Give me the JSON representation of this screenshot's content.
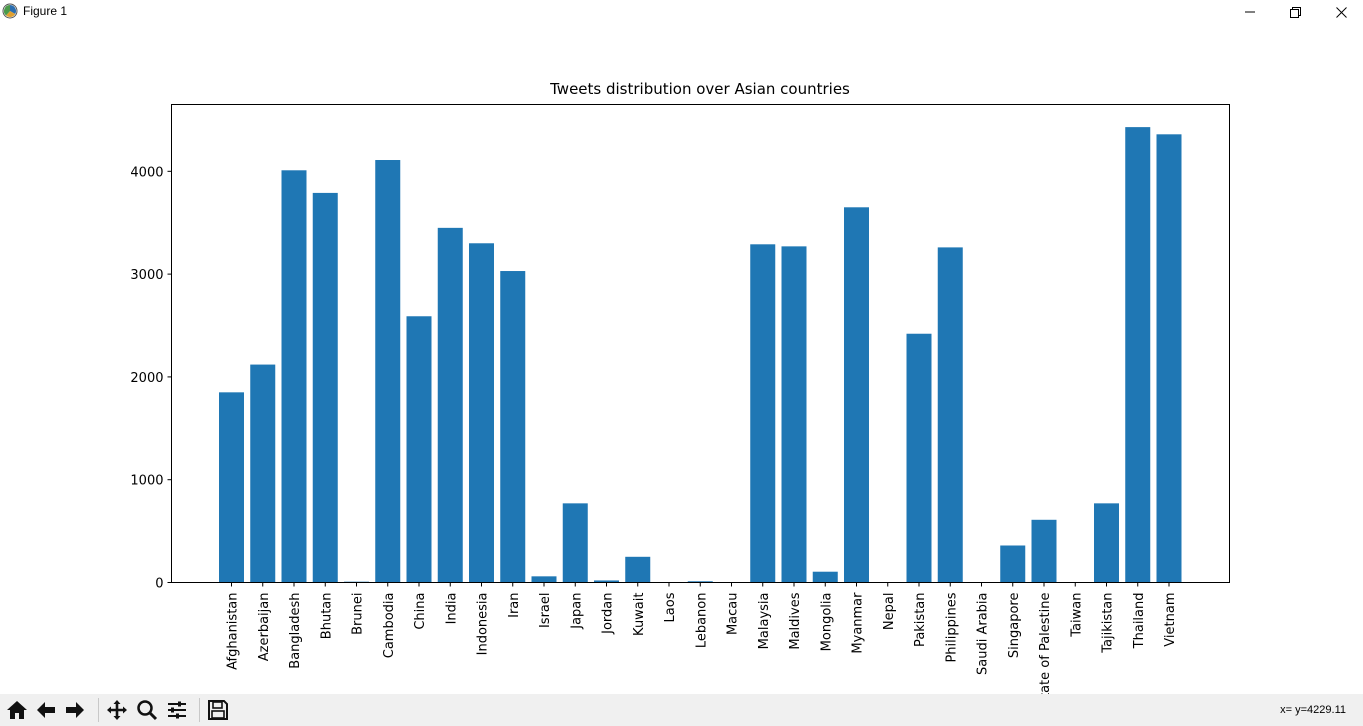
{
  "window": {
    "title": "Figure 1",
    "icons": [
      "app-icon",
      "minimize-icon",
      "maximize-icon",
      "close-icon"
    ]
  },
  "toolbar": {
    "buttons": [
      "home-icon",
      "back-icon",
      "forward-icon",
      "pan-icon",
      "zoom-icon",
      "configure-subplots-icon",
      "save-icon"
    ],
    "coords_text": "x= y=4229.11"
  },
  "colors": {
    "bar": "#1f77b4",
    "toolbar_bg": "#f0f0f0"
  },
  "chart_data": {
    "type": "bar",
    "title": "Tweets distribution over Asian countries",
    "xlabel": "",
    "ylabel": "",
    "ylim": [
      0,
      4650
    ],
    "yticks": [
      0,
      1000,
      2000,
      3000,
      4000
    ],
    "ytick_labels": [
      "0",
      "1000",
      "2000",
      "3000",
      "4000"
    ],
    "grid": false,
    "categories": [
      "Afghanistan",
      "Azerbaijan",
      "Bangladesh",
      "Bhutan",
      "Brunei",
      "Cambodia",
      "China",
      "India",
      "Indonesia",
      "Iran",
      "Israel",
      "Japan",
      "Jordan",
      "Kuwait",
      "Laos",
      "Lebanon",
      "Macau",
      "Malaysia",
      "Maldives",
      "Mongolia",
      "Myanmar",
      "Nepal",
      "Pakistan",
      "Philippines",
      "Saudi Arabia",
      "Singapore",
      "State of Palestine",
      "Taiwan",
      "Tajikistan",
      "Thailand",
      "Vietnam"
    ],
    "values": [
      1850,
      2120,
      4010,
      3790,
      8,
      4110,
      2590,
      3450,
      3300,
      3030,
      60,
      770,
      20,
      250,
      0,
      12,
      0,
      3290,
      3270,
      105,
      3650,
      0,
      2420,
      3260,
      0,
      360,
      610,
      0,
      770,
      4430,
      4360
    ]
  }
}
